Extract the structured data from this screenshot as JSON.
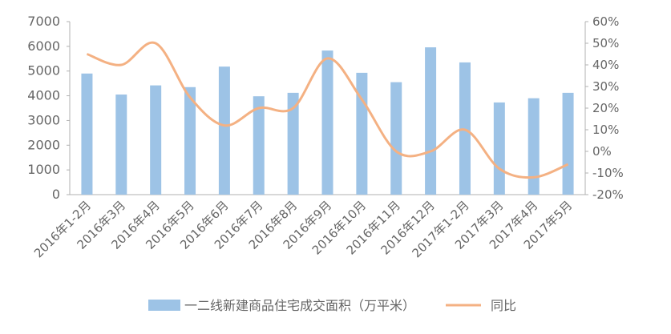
{
  "chart_data": {
    "type": "bar+line",
    "categories": [
      "2016年1-2月",
      "2016年3月",
      "2016年4月",
      "2016年5月",
      "2016年6月",
      "2016年7月",
      "2016年8月",
      "2016年9月",
      "2016年10月",
      "2016年11月",
      "2016年12月",
      "2017年1-2月",
      "2017年3月",
      "2017年4月",
      "2017年5月"
    ],
    "series": [
      {
        "name": "一二线新建商品住宅成交面积（万平米）",
        "kind": "bar",
        "axis": "left",
        "color": "#9dc3e6",
        "values": [
          4900,
          4050,
          4420,
          4350,
          5180,
          3980,
          4120,
          5830,
          4930,
          4550,
          5960,
          5350,
          3730,
          3900,
          4120
        ]
      },
      {
        "name": "同比",
        "kind": "line",
        "axis": "right",
        "color": "#f4b183",
        "values": [
          0.45,
          0.4,
          0.5,
          0.25,
          0.12,
          0.2,
          0.2,
          0.43,
          0.24,
          0.0,
          0.0,
          0.1,
          -0.08,
          -0.12,
          -0.06
        ]
      }
    ],
    "y_left": {
      "min": 0,
      "max": 7000,
      "ticks": [
        "0",
        "1000",
        "2000",
        "3000",
        "4000",
        "5000",
        "6000",
        "7000"
      ]
    },
    "y_right": {
      "min": -0.2,
      "max": 0.6,
      "ticks": [
        "-20%",
        "-10%",
        "0%",
        "10%",
        "20%",
        "30%",
        "40%",
        "50%",
        "60%"
      ]
    },
    "legend_position": "bottom",
    "grid": false
  }
}
